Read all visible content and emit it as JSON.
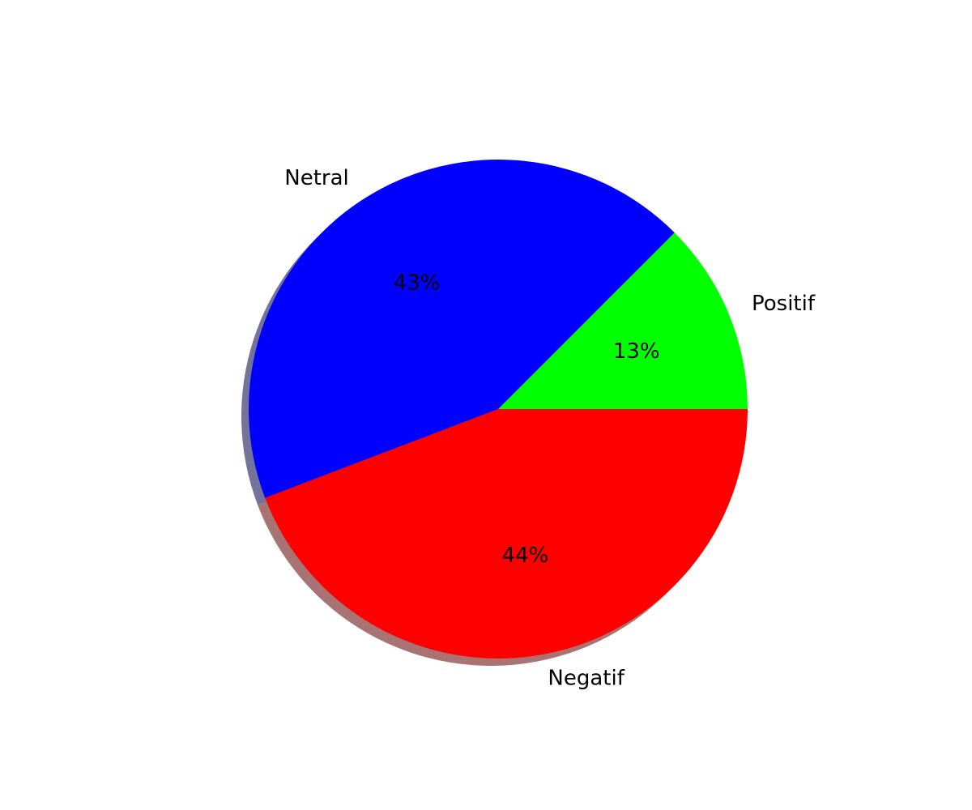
{
  "chart_data": {
    "type": "pie",
    "start_angle_deg": 0,
    "direction": "counterclockwise",
    "shadow": true,
    "slices": [
      {
        "label": "Positif",
        "percent_label": "13%",
        "value": 12.5,
        "color": "#00ff00",
        "shadow_color": "#5a8a5a"
      },
      {
        "label": "Netral",
        "percent_label": "43%",
        "value": 43.3,
        "color": "#0000ff",
        "shadow_color": "#5a5a8a"
      },
      {
        "label": "Negatif",
        "percent_label": "44%",
        "value": 44.2,
        "color": "#ff0000",
        "shadow_color": "#9a5a5a"
      }
    ]
  }
}
